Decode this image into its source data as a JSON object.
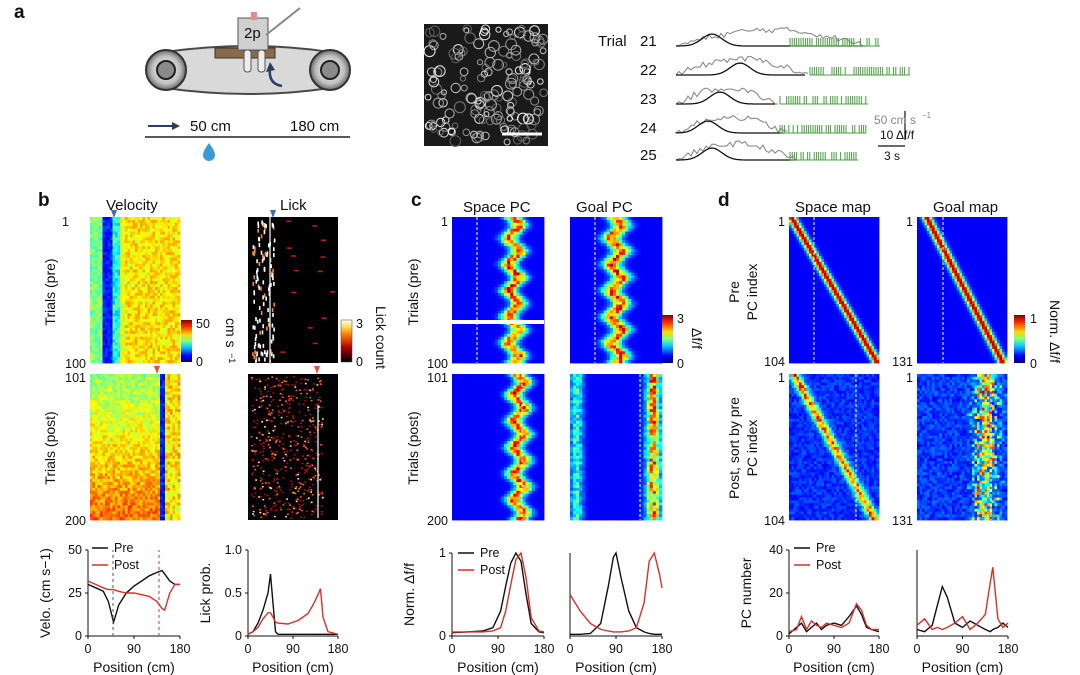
{
  "panel_labels": {
    "a": "a",
    "b": "b",
    "c": "c",
    "d": "d"
  },
  "panel_a": {
    "microscope_label": "2p",
    "track_start": "50 cm",
    "track_end": "180 cm",
    "trial_word": "Trial",
    "trials": [
      "21",
      "22",
      "23",
      "24",
      "25"
    ],
    "scale_velocity": "50 cm s",
    "scale_velocity_sup": "−1",
    "scale_dff": "10 Δf/f",
    "scale_time": "3 s"
  },
  "panel_b": {
    "title_velocity": "Velocity",
    "title_lick": "Lick",
    "ylabel_pre": "Trials (pre)",
    "ylabel_post": "Trials (post)",
    "yticks_pre": [
      "1",
      "100"
    ],
    "yticks_post": [
      "101",
      "200"
    ],
    "velocity_cbar_ticks": [
      "50",
      "0"
    ],
    "velocity_cbar_label": "cm s",
    "velocity_cbar_sup": "−1",
    "lick_cbar_ticks": [
      "3",
      "0"
    ],
    "lick_cbar_label": "Lick count"
  },
  "panel_c": {
    "title_space": "Space PC",
    "title_goal": "Goal PC",
    "ylabel_pre": "Trials (pre)",
    "ylabel_post": "Trials (post)",
    "yticks_pre": [
      "1",
      "100"
    ],
    "yticks_post": [
      "101",
      "200"
    ],
    "cbar_ticks": [
      "3",
      "0"
    ],
    "cbar_label": "Δf/f"
  },
  "panel_d": {
    "title_space": "Space map",
    "title_goal": "Goal map",
    "ylabel_pre_1": "Pre",
    "ylabel_pre_2": "PC index",
    "ylabel_post_1": "Post, sort by pre",
    "ylabel_post_2": "PC index",
    "space_ticks": [
      "1",
      "104"
    ],
    "goal_ticks": [
      "1",
      "131"
    ],
    "cbar_ticks": [
      "1",
      "0"
    ],
    "cbar_label": "Norm. Δf/f"
  },
  "legend": {
    "pre": "Pre",
    "post": "Post"
  },
  "xlabel": "Position (cm)",
  "colors": {
    "pre": "#111111",
    "post": "#d8302b",
    "lick_raster": "#ffffff",
    "velocity_marker": "#3a6fb0",
    "post_marker": "#e0553a"
  },
  "chart_data": [
    {
      "type": "line",
      "name_ref": "velocity-line",
      "xlabel": "Position (cm)",
      "ylabel": "Velo. (cm s−1)",
      "xlim": [
        0,
        180
      ],
      "ylim": [
        0,
        50
      ],
      "xticks": [
        "0",
        "90",
        "180"
      ],
      "yticks": [
        "0",
        "25",
        "50"
      ],
      "x": [
        0,
        15,
        30,
        40,
        50,
        60,
        75,
        90,
        105,
        120,
        135,
        145,
        150,
        160,
        170,
        180
      ],
      "series": [
        {
          "name": "Pre",
          "values": [
            30,
            28,
            26,
            20,
            8,
            18,
            25,
            29,
            32,
            35,
            37,
            38,
            36,
            32,
            30,
            30
          ]
        },
        {
          "name": "Post",
          "values": [
            32,
            30,
            28,
            27,
            27,
            26,
            25,
            25,
            24,
            23,
            20,
            16,
            15,
            25,
            30,
            30
          ]
        }
      ]
    },
    {
      "type": "line",
      "name_ref": "lick-line",
      "ylabel": "Lick prob.",
      "xlabel": "Position (cm)",
      "xlim": [
        0,
        180
      ],
      "ylim": [
        0,
        1.0
      ],
      "xticks": [
        "0",
        "90",
        "180"
      ],
      "yticks": [
        "0",
        "0.5",
        "1.0"
      ],
      "x": [
        0,
        10,
        20,
        30,
        40,
        45,
        50,
        55,
        60,
        80,
        100,
        120,
        130,
        140,
        145,
        150,
        160,
        180
      ],
      "series": [
        {
          "name": "Pre",
          "values": [
            0.02,
            0.05,
            0.15,
            0.3,
            0.5,
            0.72,
            0.38,
            0.05,
            0.02,
            0.02,
            0.02,
            0.02,
            0.02,
            0.02,
            0.02,
            0.02,
            0.02,
            0.02
          ]
        },
        {
          "name": "Post",
          "values": [
            0.02,
            0.05,
            0.1,
            0.2,
            0.27,
            0.27,
            0.22,
            0.16,
            0.15,
            0.14,
            0.18,
            0.26,
            0.36,
            0.48,
            0.55,
            0.22,
            0.05,
            0.02
          ]
        }
      ]
    },
    {
      "type": "line",
      "name_ref": "space-pc-line",
      "ylabel": "Norm. Δf/f",
      "xlabel": "Position (cm)",
      "xlim": [
        0,
        180
      ],
      "ylim": [
        0,
        1
      ],
      "xticks": [
        "0",
        "90",
        "180"
      ],
      "yticks": [
        "0",
        "1"
      ],
      "x": [
        0,
        30,
        60,
        80,
        95,
        105,
        115,
        125,
        135,
        145,
        155,
        170,
        180
      ],
      "series": [
        {
          "name": "Pre",
          "values": [
            0.04,
            0.05,
            0.06,
            0.1,
            0.3,
            0.6,
            0.88,
            1.0,
            0.9,
            0.5,
            0.15,
            0.05,
            0.04
          ]
        },
        {
          "name": "Post",
          "values": [
            0.05,
            0.05,
            0.05,
            0.06,
            0.1,
            0.3,
            0.62,
            0.92,
            1.0,
            0.7,
            0.22,
            0.06,
            0.05
          ]
        }
      ]
    },
    {
      "type": "line",
      "name_ref": "goal-pc-line",
      "xlabel": "Position (cm)",
      "xlim": [
        0,
        180
      ],
      "ylim": [
        0,
        1
      ],
      "xticks": [
        "0",
        "90",
        "180"
      ],
      "x": [
        0,
        20,
        40,
        60,
        75,
        85,
        90,
        100,
        115,
        130,
        145,
        155,
        165,
        175,
        180
      ],
      "series": [
        {
          "name": "Pre",
          "values": [
            0.02,
            0.02,
            0.03,
            0.15,
            0.6,
            0.95,
            1.0,
            0.7,
            0.3,
            0.1,
            0.05,
            0.03,
            0.02,
            0.02,
            0.02
          ]
        },
        {
          "name": "Post",
          "values": [
            0.5,
            0.3,
            0.15,
            0.08,
            0.06,
            0.05,
            0.05,
            0.05,
            0.06,
            0.1,
            0.4,
            0.9,
            1.0,
            0.75,
            0.58
          ]
        }
      ]
    },
    {
      "type": "line",
      "name_ref": "space-map-count",
      "ylabel": "PC number",
      "xlabel": "Position (cm)",
      "xlim": [
        0,
        180
      ],
      "ylim": [
        0,
        40
      ],
      "xticks": [
        "0",
        "90",
        "180"
      ],
      "yticks": [
        "0",
        "20",
        "40"
      ],
      "x": [
        0,
        15,
        25,
        35,
        45,
        55,
        65,
        75,
        90,
        105,
        120,
        135,
        145,
        155,
        165,
        180
      ],
      "series": [
        {
          "name": "Pre",
          "values": [
            1,
            4,
            6,
            2,
            4,
            6,
            3,
            5,
            6,
            5,
            9,
            14,
            10,
            4,
            3,
            2
          ]
        },
        {
          "name": "Post",
          "values": [
            2,
            3,
            9,
            3,
            7,
            5,
            4,
            6,
            5,
            4,
            6,
            15,
            12,
            5,
            3,
            3
          ]
        }
      ]
    },
    {
      "type": "line",
      "name_ref": "goal-map-count",
      "xlabel": "Position (cm)",
      "xlim": [
        0,
        180
      ],
      "ylim": [
        0,
        40
      ],
      "xticks": [
        "0",
        "90",
        "180"
      ],
      "x": [
        0,
        15,
        30,
        40,
        50,
        60,
        75,
        90,
        105,
        120,
        135,
        145,
        150,
        160,
        170,
        180
      ],
      "series": [
        {
          "name": "Pre",
          "values": [
            3,
            2,
            5,
            14,
            23,
            18,
            6,
            4,
            7,
            5,
            3,
            2,
            3,
            4,
            6,
            4
          ]
        },
        {
          "name": "Post",
          "values": [
            5,
            8,
            3,
            4,
            3,
            4,
            6,
            9,
            3,
            6,
            10,
            25,
            32,
            8,
            4,
            6
          ]
        }
      ]
    }
  ]
}
